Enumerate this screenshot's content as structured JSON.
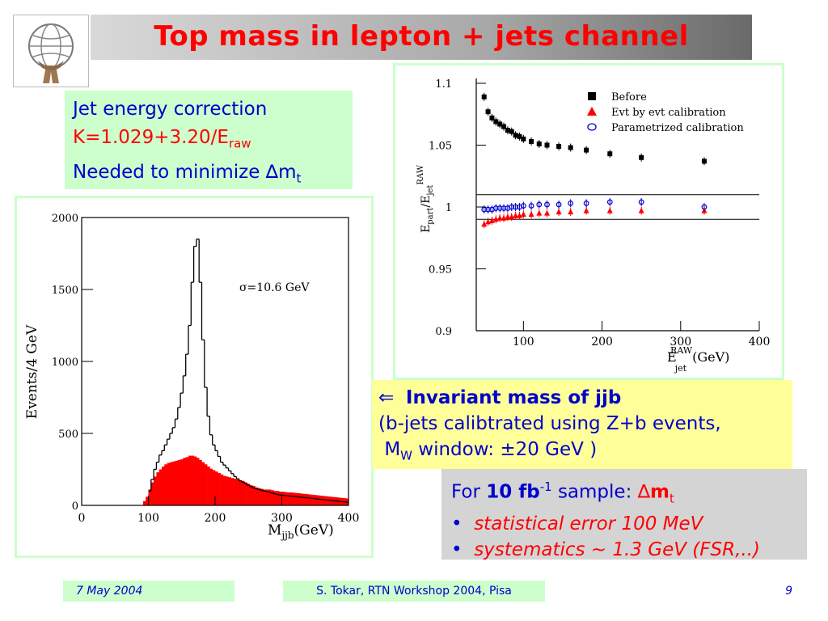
{
  "title": "Top mass in lepton + jets channel",
  "jet_box": {
    "line1": "Jet energy correction",
    "line2_main": "K=1.029+3.20/E",
    "line2_sub": "raw",
    "line3_main": "Needed to minimize ",
    "line3_delta": "∆",
    "line3_m": "m",
    "line3_sub": "t"
  },
  "invariant_box": {
    "arrow": "⇐",
    "heading": "Invariant mass of jjb",
    "line2": "(b-jets calibtrated using Z+b events,",
    "line3_pre": "M",
    "line3_sub": "W",
    "line3_post": " window: ±20 GeV )"
  },
  "stat_box": {
    "l1_a": "For ",
    "l1_b": "10 fb",
    "l1_sup": "-1",
    "l1_c": " sample:  ",
    "l1_d": "∆",
    "l1_e": "m",
    "l1_sub": "t",
    "bullet1": "statistical error 100 MeV",
    "bullet2": "systematics ~ 1.3 GeV (FSR,..)"
  },
  "footer": {
    "date": "7 May 2004",
    "center": "S. Tokar, RTN Workshop 2004, Pisa",
    "page": "9"
  },
  "colors": {
    "title": "#ff0000",
    "text_blue": "#0000cc",
    "green_box": "#ccffcc",
    "yellow_box": "#ffff99",
    "gray_box": "#d4d4d4"
  },
  "chart_data": [
    {
      "type": "histogram",
      "ylabel": "Events/4 GeV",
      "xlabel_main": "M",
      "xlabel_sub": "jjb",
      "xlabel_unit": "(GeV)",
      "annotation": "σ=10.6 GeV",
      "xlim": [
        0,
        400
      ],
      "ylim": [
        0,
        2000
      ],
      "xticks": [
        0,
        100,
        200,
        300,
        400
      ],
      "yticks": [
        0,
        500,
        1000,
        1500,
        2000
      ],
      "series": [
        {
          "style": "step-outline",
          "color": "#000000",
          "x": [
            100,
            104,
            108,
            112,
            116,
            120,
            124,
            128,
            132,
            136,
            140,
            144,
            148,
            152,
            156,
            160,
            164,
            168,
            172,
            176,
            180,
            184,
            188,
            192,
            196,
            200,
            204,
            208,
            212,
            216,
            220,
            224,
            228,
            232,
            236,
            240,
            244,
            248,
            252,
            256,
            260,
            264,
            268,
            272,
            276,
            280,
            284,
            288,
            292,
            296,
            300,
            304,
            308,
            312,
            316,
            320,
            324,
            328,
            332,
            336,
            340,
            344,
            348,
            352,
            356,
            360,
            364,
            368,
            372,
            376,
            380,
            384,
            388,
            392,
            396
          ],
          "y": [
            100,
            180,
            250,
            300,
            350,
            380,
            420,
            460,
            500,
            540,
            600,
            680,
            780,
            900,
            1050,
            1250,
            1550,
            1800,
            1850,
            1550,
            1150,
            820,
            620,
            490,
            420,
            380,
            340,
            300,
            280,
            260,
            240,
            220,
            200,
            185,
            170,
            160,
            150,
            140,
            130,
            120,
            115,
            110,
            105,
            100,
            95,
            90,
            85,
            80,
            75,
            72,
            70,
            68,
            66,
            64,
            62,
            60,
            58,
            56,
            54,
            52,
            50,
            48,
            46,
            44,
            42,
            40,
            38,
            36,
            34,
            32,
            30,
            28,
            26,
            24,
            22
          ]
        },
        {
          "style": "filled",
          "color": "#ff0000",
          "x": [
            92,
            96,
            100,
            104,
            108,
            112,
            116,
            120,
            124,
            128,
            132,
            136,
            140,
            144,
            148,
            152,
            156,
            160,
            164,
            168,
            172,
            176,
            180,
            184,
            188,
            192,
            196,
            200,
            204,
            208,
            212,
            216,
            220,
            224,
            228,
            232,
            236,
            240,
            244,
            248,
            252,
            256,
            260,
            264,
            268,
            272,
            276,
            280,
            284,
            288,
            292,
            296,
            300,
            304,
            308,
            312,
            316,
            320,
            324,
            328,
            332,
            336,
            340,
            344,
            348,
            352,
            356,
            360,
            364,
            368,
            372,
            376,
            380,
            384,
            388,
            392,
            396
          ],
          "y": [
            30,
            60,
            110,
            160,
            200,
            230,
            250,
            270,
            285,
            295,
            300,
            305,
            310,
            315,
            320,
            330,
            335,
            345,
            345,
            340,
            330,
            315,
            300,
            285,
            270,
            255,
            245,
            235,
            225,
            215,
            205,
            200,
            195,
            190,
            185,
            180,
            175,
            170,
            160,
            150,
            140,
            135,
            125,
            120,
            115,
            110,
            110,
            110,
            105,
            100,
            100,
            95,
            95,
            92,
            90,
            90,
            88,
            86,
            84,
            82,
            80,
            78,
            76,
            74,
            72,
            70,
            68,
            66,
            64,
            62,
            60,
            58,
            56,
            54,
            52,
            50,
            48
          ]
        }
      ]
    },
    {
      "type": "scatter",
      "ylabel_main": "E",
      "ylabel_sub1": "part",
      "ylabel_slash": "/E",
      "ylabel_sub2": "jet",
      "ylabel_sup": "RAW",
      "xlabel_main": "E",
      "xlabel_sub": "jet",
      "xlabel_sup": "RAW",
      "xlabel_unit": "(GeV)",
      "xlim": [
        40,
        400
      ],
      "ylim": [
        0.9,
        1.1
      ],
      "xticks": [
        100,
        200,
        300,
        400
      ],
      "yticks": [
        0.9,
        0.95,
        1,
        1.05,
        1.1
      ],
      "ytick_labels": [
        "0.9",
        "0.95",
        "1",
        "1.05",
        "1.1"
      ],
      "bands": [
        0.99,
        1.01
      ],
      "legend_position": "top-right",
      "series": [
        {
          "name": "Before",
          "marker": "square",
          "color": "#000000",
          "x": [
            50,
            55,
            60,
            65,
            70,
            75,
            80,
            85,
            90,
            95,
            100,
            110,
            120,
            130,
            145,
            160,
            180,
            210,
            250,
            330
          ],
          "y": [
            1.089,
            1.077,
            1.072,
            1.069,
            1.067,
            1.065,
            1.062,
            1.061,
            1.058,
            1.057,
            1.055,
            1.053,
            1.051,
            1.05,
            1.049,
            1.048,
            1.046,
            1.043,
            1.04,
            1.037
          ]
        },
        {
          "name": "Evt by evt calibration",
          "marker": "triangle",
          "color": "#ff0000",
          "x": [
            50,
            55,
            60,
            65,
            70,
            75,
            80,
            85,
            90,
            95,
            100,
            110,
            120,
            130,
            145,
            160,
            180,
            210,
            250,
            330
          ],
          "y": [
            0.986,
            0.988,
            0.989,
            0.99,
            0.991,
            0.991,
            0.992,
            0.992,
            0.993,
            0.993,
            0.994,
            0.994,
            0.995,
            0.995,
            0.996,
            0.996,
            0.997,
            0.997,
            0.997,
            0.997
          ]
        },
        {
          "name": "Parametrized calibration",
          "marker": "circle",
          "color": "#0000cc",
          "x": [
            50,
            55,
            60,
            65,
            70,
            75,
            80,
            85,
            90,
            95,
            100,
            110,
            120,
            130,
            145,
            160,
            180,
            210,
            250,
            330
          ],
          "y": [
            0.998,
            0.998,
            0.998,
            0.999,
            0.999,
            0.999,
            0.999,
            1.0,
            1.0,
            1.0,
            1.001,
            1.001,
            1.002,
            1.002,
            1.002,
            1.003,
            1.003,
            1.004,
            1.004,
            1.0
          ]
        }
      ]
    }
  ]
}
